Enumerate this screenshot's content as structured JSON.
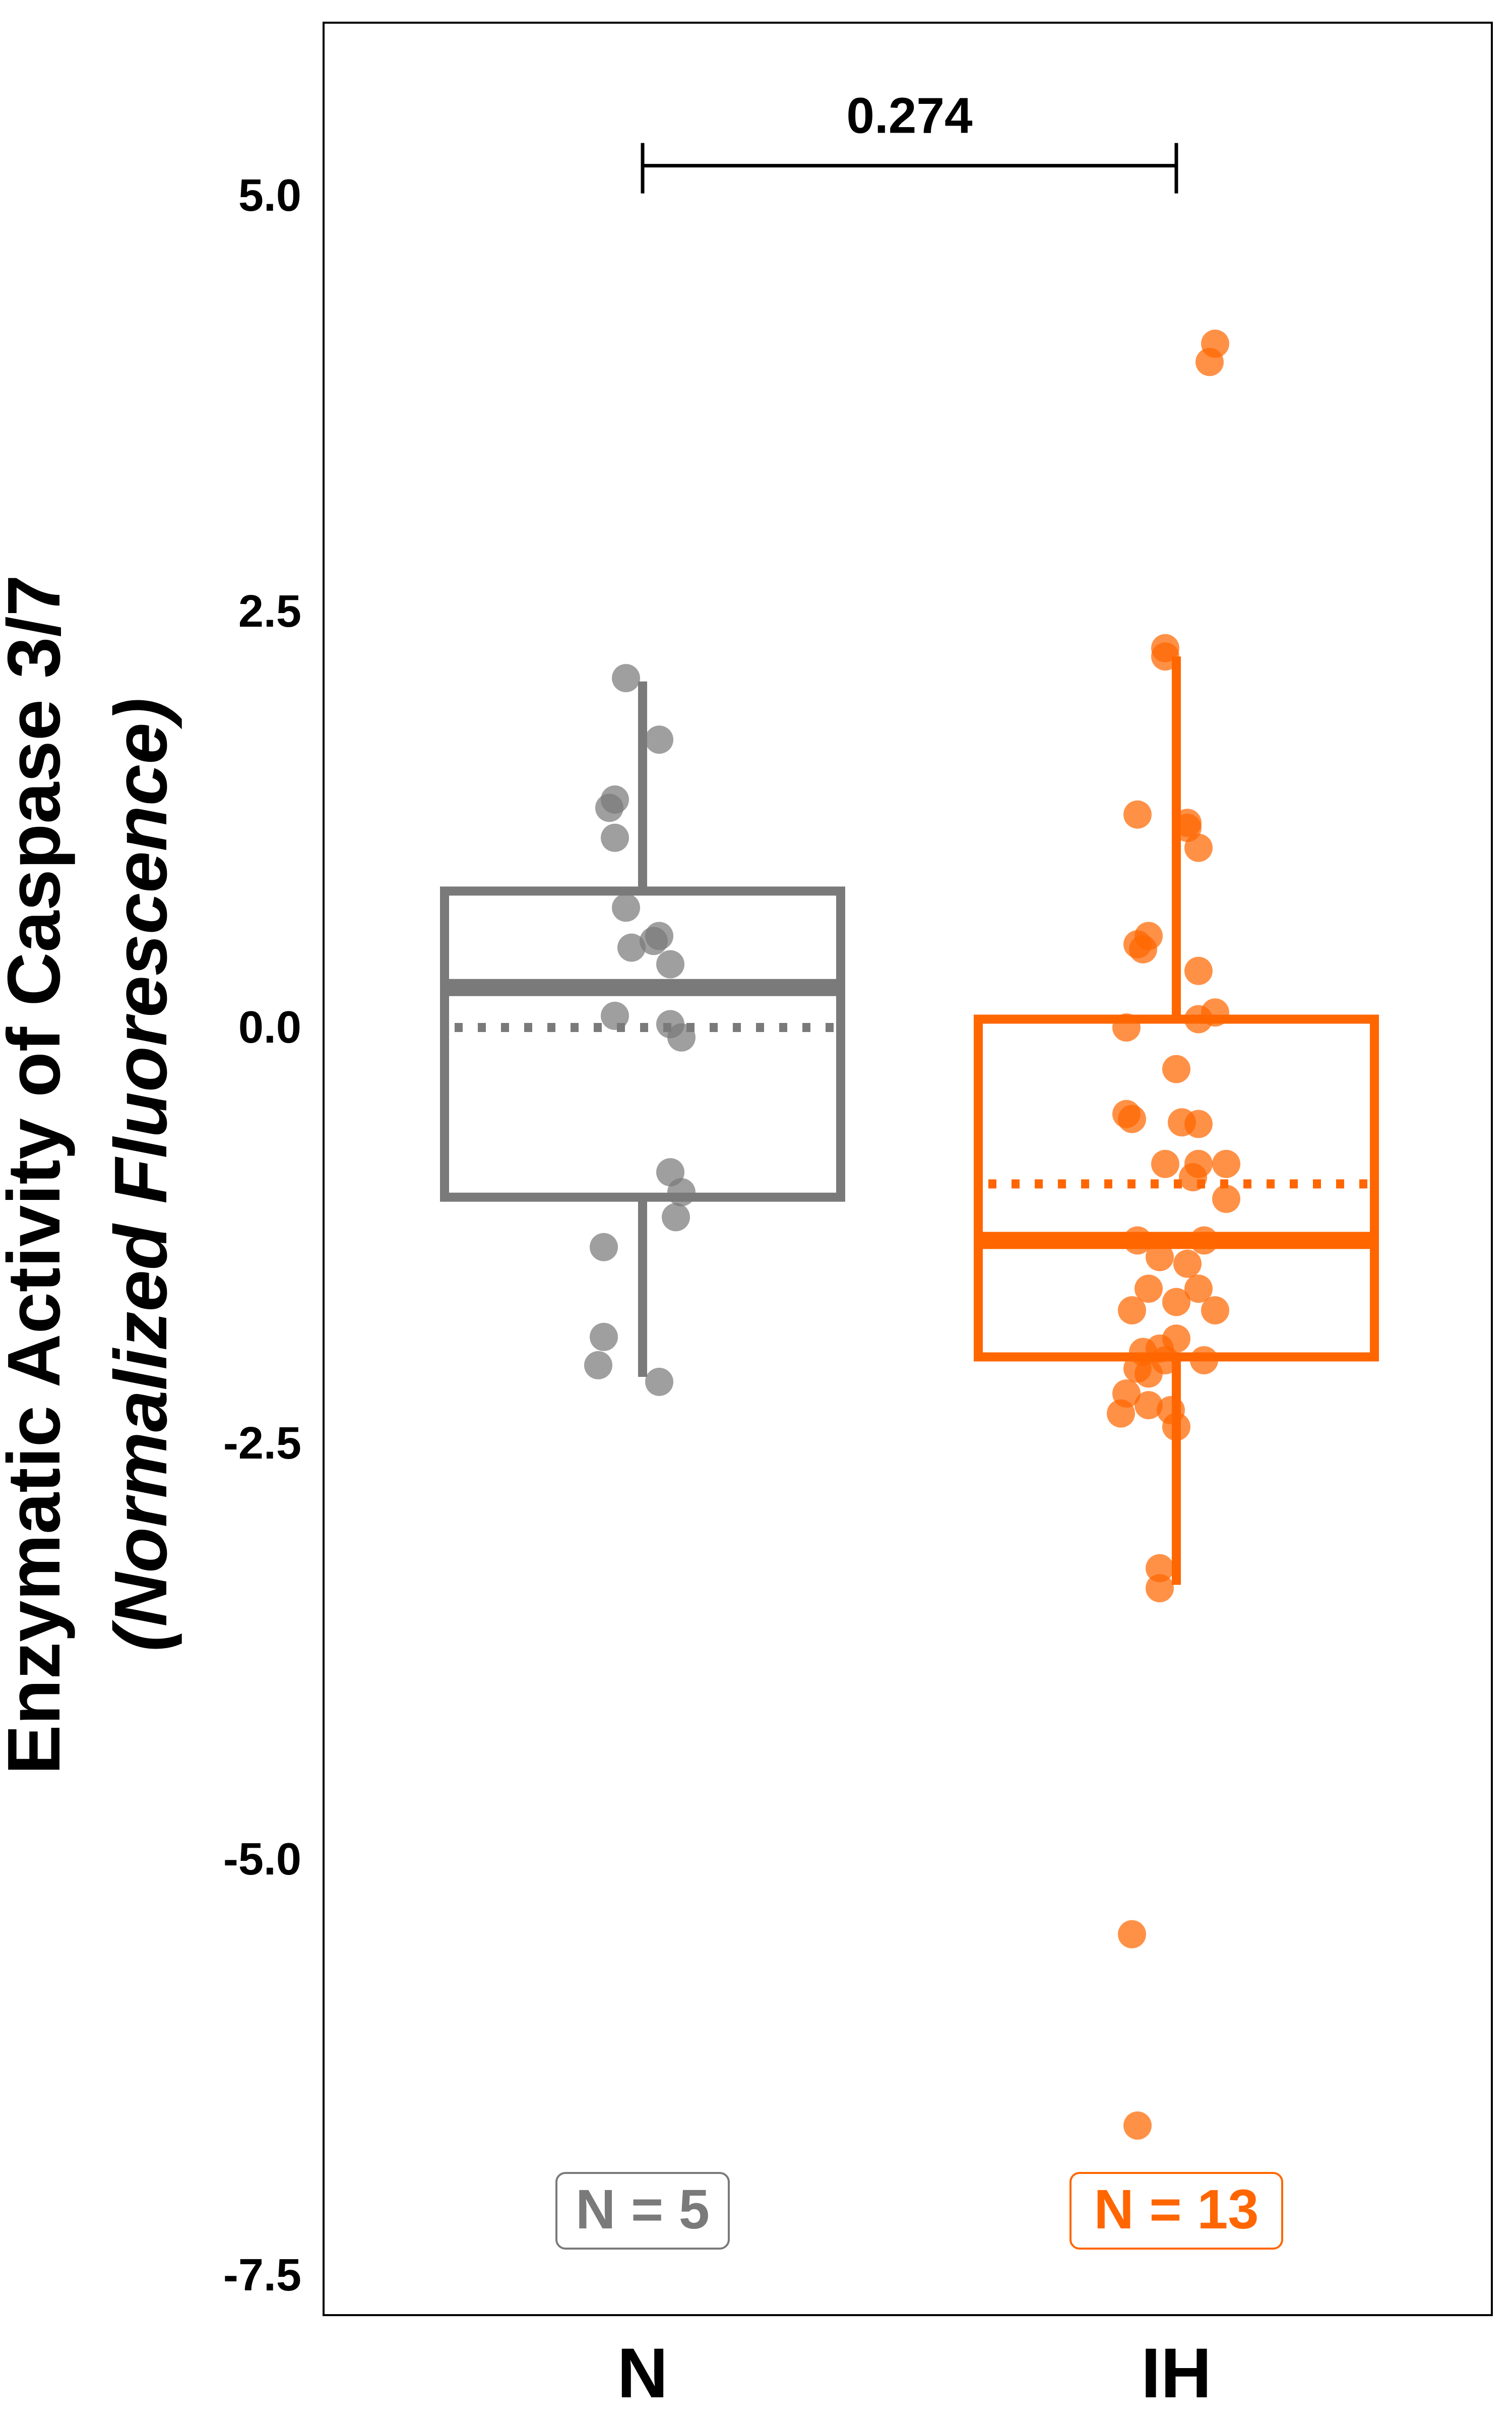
{
  "chart_data": {
    "type": "box",
    "title": "",
    "ylabel": "Enzymatic Activity of Caspase 3/7",
    "ylabel_sub": "(Normalized Fluorescence)",
    "xlabel": "",
    "ylim": [
      -7.6,
      6.0
    ],
    "yticks": [
      5.0,
      2.5,
      0.0,
      -2.5,
      -5.0,
      -7.5
    ],
    "ytick_labels": [
      "5.0",
      "2.5",
      "0.0",
      "-2.5",
      "-5.0",
      "-7.5"
    ],
    "grid": false,
    "legend": "none",
    "categories": [
      "N",
      "IH"
    ],
    "series": [
      {
        "category": "N",
        "color": "#7a7a7a",
        "n_label": "N = 5",
        "whisker_low": -2.1,
        "q1": -1.02,
        "median": 0.24,
        "mean": 0.0,
        "q3": 0.82,
        "whisker_high": 2.08,
        "points": [
          {
            "jx": -0.03,
            "y": 2.1
          },
          {
            "jx": 0.03,
            "y": 1.73
          },
          {
            "jx": -0.06,
            "y": 1.32
          },
          {
            "jx": -0.05,
            "y": 1.37
          },
          {
            "jx": -0.05,
            "y": 1.14
          },
          {
            "jx": -0.03,
            "y": 0.72
          },
          {
            "jx": 0.03,
            "y": 0.55
          },
          {
            "jx": 0.02,
            "y": 0.52
          },
          {
            "jx": -0.02,
            "y": 0.48
          },
          {
            "jx": 0.05,
            "y": 0.38
          },
          {
            "jx": -0.05,
            "y": 0.07
          },
          {
            "jx": 0.05,
            "y": 0.02
          },
          {
            "jx": 0.07,
            "y": -0.06
          },
          {
            "jx": 0.05,
            "y": -0.87
          },
          {
            "jx": 0.07,
            "y": -0.99
          },
          {
            "jx": 0.06,
            "y": -1.14
          },
          {
            "jx": -0.07,
            "y": -1.32
          },
          {
            "jx": -0.07,
            "y": -1.86
          },
          {
            "jx": -0.08,
            "y": -2.03
          },
          {
            "jx": 0.03,
            "y": -2.13
          }
        ]
      },
      {
        "category": "IH",
        "color": "#ff6600",
        "n_label": "N = 13",
        "whisker_low": -3.35,
        "q1": -1.98,
        "median": -1.28,
        "mean": -0.94,
        "q3": 0.05,
        "whisker_high": 2.23,
        "points": [
          {
            "jx": 0.07,
            "y": 4.11
          },
          {
            "jx": 0.06,
            "y": 4.0
          },
          {
            "jx": -0.02,
            "y": 2.28
          },
          {
            "jx": -0.02,
            "y": 2.23
          },
          {
            "jx": -0.07,
            "y": 1.28
          },
          {
            "jx": 0.02,
            "y": 1.23
          },
          {
            "jx": 0.02,
            "y": 1.2
          },
          {
            "jx": 0.04,
            "y": 1.08
          },
          {
            "jx": -0.05,
            "y": 0.55
          },
          {
            "jx": -0.07,
            "y": 0.5
          },
          {
            "jx": -0.06,
            "y": 0.47
          },
          {
            "jx": 0.04,
            "y": 0.34
          },
          {
            "jx": 0.07,
            "y": 0.09
          },
          {
            "jx": 0.04,
            "y": 0.05
          },
          {
            "jx": -0.09,
            "y": 0.0
          },
          {
            "jx": 0.0,
            "y": -0.25
          },
          {
            "jx": -0.09,
            "y": -0.52
          },
          {
            "jx": -0.08,
            "y": -0.55
          },
          {
            "jx": 0.01,
            "y": -0.57
          },
          {
            "jx": 0.04,
            "y": -0.58
          },
          {
            "jx": -0.02,
            "y": -0.82
          },
          {
            "jx": 0.04,
            "y": -0.82
          },
          {
            "jx": 0.09,
            "y": -0.82
          },
          {
            "jx": 0.03,
            "y": -0.9
          },
          {
            "jx": 0.09,
            "y": -1.03
          },
          {
            "jx": -0.07,
            "y": -1.28
          },
          {
            "jx": 0.05,
            "y": -1.28
          },
          {
            "jx": -0.03,
            "y": -1.38
          },
          {
            "jx": 0.02,
            "y": -1.42
          },
          {
            "jx": -0.05,
            "y": -1.57
          },
          {
            "jx": 0.04,
            "y": -1.57
          },
          {
            "jx": 0.0,
            "y": -1.65
          },
          {
            "jx": -0.08,
            "y": -1.7
          },
          {
            "jx": 0.07,
            "y": -1.7
          },
          {
            "jx": 0.0,
            "y": -1.87
          },
          {
            "jx": -0.03,
            "y": -1.93
          },
          {
            "jx": -0.06,
            "y": -1.95
          },
          {
            "jx": -0.02,
            "y": -2.0
          },
          {
            "jx": 0.05,
            "y": -2.0
          },
          {
            "jx": -0.07,
            "y": -2.05
          },
          {
            "jx": -0.05,
            "y": -2.08
          },
          {
            "jx": -0.09,
            "y": -2.2
          },
          {
            "jx": -0.05,
            "y": -2.27
          },
          {
            "jx": -0.01,
            "y": -2.3
          },
          {
            "jx": -0.1,
            "y": -2.32
          },
          {
            "jx": 0.0,
            "y": -2.4
          },
          {
            "jx": -0.03,
            "y": -3.25
          },
          {
            "jx": -0.03,
            "y": -3.37
          },
          {
            "jx": -0.08,
            "y": -5.45
          },
          {
            "jx": -0.07,
            "y": -6.6
          }
        ]
      }
    ],
    "comparison": {
      "label": "0.274",
      "from": "N",
      "to": "IH",
      "y": 5.18
    }
  }
}
